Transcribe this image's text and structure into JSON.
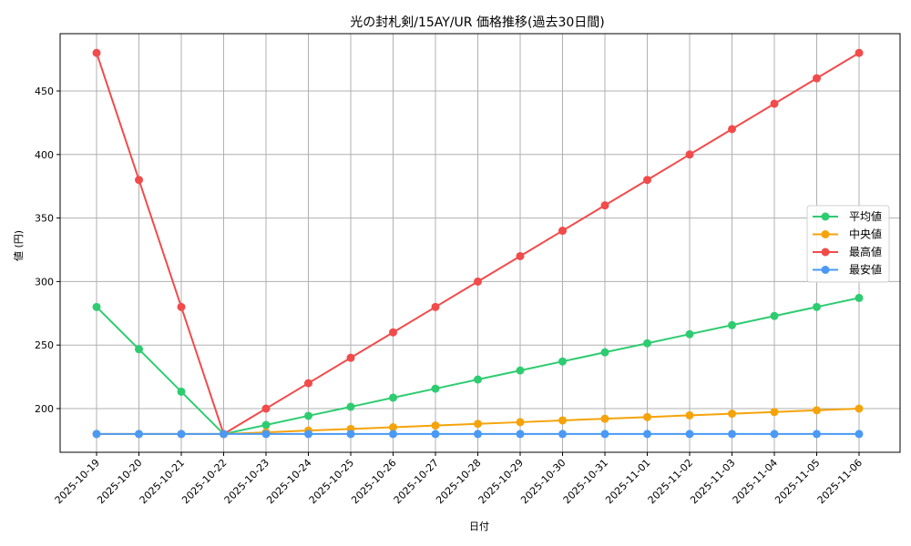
{
  "chart_data": {
    "type": "line",
    "title": "光の封札剣/15AY/UR 価格推移(過去30日間)",
    "xlabel": "日付",
    "ylabel": "値 (円)",
    "ylim": [
      165,
      492
    ],
    "yticks": [
      200,
      250,
      300,
      350,
      400,
      450
    ],
    "grid": true,
    "legend_position": "center right",
    "categories": [
      "2025-10-19",
      "2025-10-20",
      "2025-10-21",
      "2025-10-22",
      "2025-10-23",
      "2025-10-24",
      "2025-10-25",
      "2025-10-26",
      "2025-10-27",
      "2025-10-28",
      "2025-10-29",
      "2025-10-30",
      "2025-10-31",
      "2025-11-01",
      "2025-11-02",
      "2025-11-03",
      "2025-11-04",
      "2025-11-05",
      "2025-11-06"
    ],
    "series": [
      {
        "name": "平均値",
        "color": "#2ecc71",
        "values": [
          280,
          246.7,
          213.3,
          180,
          187.1,
          194.3,
          201.4,
          208.6,
          215.7,
          222.9,
          230,
          237.1,
          244.3,
          251.4,
          258.6,
          265.7,
          272.9,
          280,
          287.1
        ]
      },
      {
        "name": "中央値",
        "color": "#f5a30a",
        "values": [
          180,
          180,
          180,
          180,
          181.3,
          182.7,
          184,
          185.3,
          186.7,
          188,
          189.3,
          190.7,
          192,
          193.3,
          194.7,
          196,
          197.3,
          198.7,
          200
        ]
      },
      {
        "name": "最高値",
        "color": "#f24b4b",
        "values": [
          480,
          380,
          280,
          180,
          200,
          220,
          240,
          260,
          280,
          300,
          320,
          340,
          360,
          380,
          400,
          420,
          440,
          460,
          480
        ]
      },
      {
        "name": "最安値",
        "color": "#4a9af5",
        "values": [
          180,
          180,
          180,
          180,
          180,
          180,
          180,
          180,
          180,
          180,
          180,
          180,
          180,
          180,
          180,
          180,
          180,
          180,
          180
        ]
      }
    ]
  }
}
